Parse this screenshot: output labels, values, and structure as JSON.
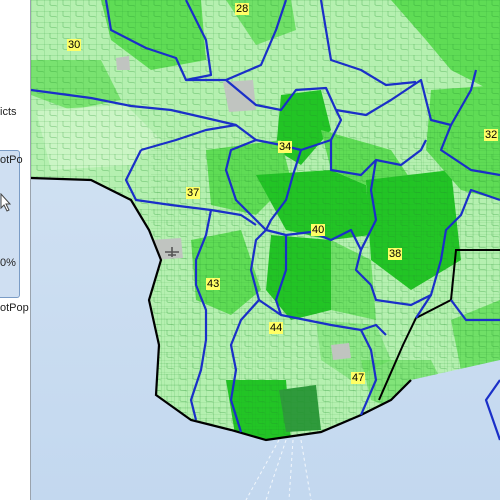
{
  "panel": {
    "labels": [
      {
        "text": "icts"
      },
      {
        "text": "otPo"
      },
      {
        "text": "0%"
      },
      {
        "text": "otPop"
      }
    ],
    "pointer_icon": "cursor-arrow-icon"
  },
  "map": {
    "colors": {
      "ocean": "#c9dcf0",
      "land_light": "#b5f0b0",
      "land_mid": "#5fdc55",
      "land_dark": "#22c425",
      "land_darkest": "#2f9a3c",
      "district_border": "#1a2fc8",
      "county_border": "#000000",
      "label_bg": "#ffff66"
    },
    "district_labels": [
      {
        "id": "30",
        "text": "30"
      },
      {
        "id": "28",
        "text": "28"
      },
      {
        "id": "34",
        "text": "34"
      },
      {
        "id": "32",
        "text": "32"
      },
      {
        "id": "37",
        "text": "37"
      },
      {
        "id": "40",
        "text": "40"
      },
      {
        "id": "38",
        "text": "38"
      },
      {
        "id": "43",
        "text": "43"
      },
      {
        "id": "44",
        "text": "44"
      },
      {
        "id": "47",
        "text": "47"
      }
    ]
  }
}
